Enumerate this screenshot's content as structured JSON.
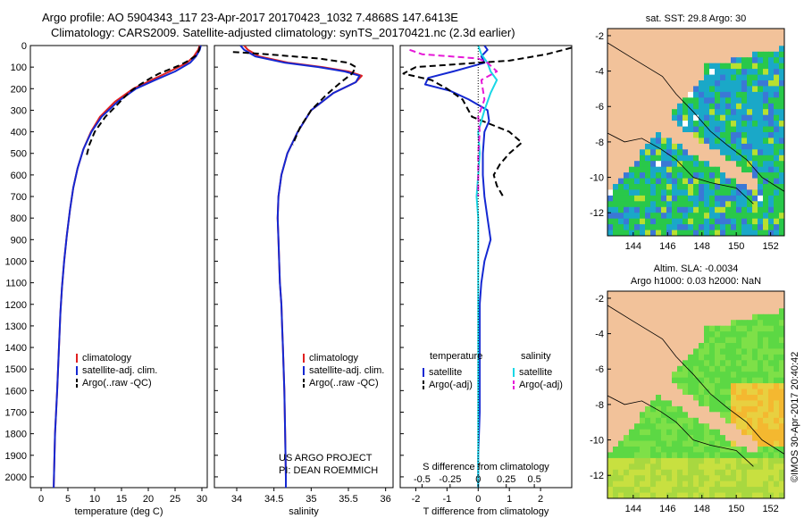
{
  "header": {
    "line1": "Argo profile: AO 5904343_117 23-Apr-2017 20170423_1032 7.4868S 147.6413E",
    "line2": "Climatology: CARS2009. Satellite-adjusted climatology: synTS_20170421.nc (2.3d earlier)"
  },
  "credit": "©IMOS 30-Apr-2017 20:40:42",
  "colors": {
    "climatology": "#e02020",
    "satellite": "#1428d2",
    "argo": "#000000",
    "salinity_satellite": "#19d7e6",
    "salinity_argo": "#e619d7",
    "land": "#f2c29a"
  },
  "chart_data": [
    {
      "type": "line",
      "id": "temperature",
      "xlabel": "temperature (deg C)",
      "ylabel": "",
      "xlim": [
        -2,
        31
      ],
      "ylim": [
        2050,
        0
      ],
      "xticks": [
        0,
        5,
        10,
        15,
        20,
        25,
        30
      ],
      "yticks": [
        0,
        100,
        200,
        300,
        400,
        500,
        600,
        700,
        800,
        900,
        1000,
        1100,
        1200,
        1300,
        1400,
        1500,
        1600,
        1700,
        1800,
        1900,
        2000
      ],
      "legend": {
        "placement": "bottom-left",
        "entries": [
          "climatology",
          "satellite-adj. clim.",
          "Argo(..raw -QC)"
        ]
      },
      "series": [
        {
          "name": "climatology",
          "style": "solid",
          "color": "#e02020",
          "x": [
            29.6,
            29.3,
            28.5,
            27.2,
            24.0,
            20.6,
            17.2,
            13.8,
            11.0,
            9.3,
            7.9,
            6.8,
            6.0,
            5.4,
            4.8,
            4.3,
            3.9,
            3.6,
            3.4,
            3.2,
            3.0,
            2.8,
            2.6,
            2.5,
            2.4,
            2.35
          ],
          "y": [
            0,
            20,
            50,
            80,
            120,
            160,
            200,
            260,
            330,
            400,
            480,
            570,
            660,
            760,
            880,
            1000,
            1120,
            1240,
            1360,
            1480,
            1600,
            1700,
            1800,
            1900,
            2000,
            2050
          ]
        },
        {
          "name": "satellite-adj. clim.",
          "style": "solid",
          "color": "#1428d2",
          "x": [
            29.8,
            29.6,
            28.9,
            27.8,
            25.0,
            21.3,
            17.7,
            14.3,
            11.3,
            9.4,
            7.9,
            6.8,
            6.0,
            5.4,
            4.8,
            4.3,
            3.9,
            3.6,
            3.4,
            3.2,
            3.0,
            2.8,
            2.6,
            2.5,
            2.4,
            2.35
          ],
          "y": [
            0,
            20,
            50,
            80,
            120,
            160,
            200,
            260,
            330,
            400,
            480,
            570,
            660,
            760,
            880,
            1000,
            1120,
            1240,
            1360,
            1480,
            1600,
            1700,
            1800,
            1900,
            2000,
            2050
          ]
        },
        {
          "name": "Argo(..raw -QC)",
          "style": "dashed",
          "color": "#000000",
          "x": [
            29.6,
            29.5,
            29.0,
            27.5,
            26.0,
            24.0,
            22.0,
            20.5,
            18.5,
            16.8,
            15.5,
            14.0,
            12.0,
            10.0,
            9.0,
            8.5
          ],
          "y": [
            5,
            20,
            45,
            70,
            90,
            110,
            130,
            150,
            180,
            210,
            240,
            280,
            330,
            400,
            460,
            510
          ]
        }
      ]
    },
    {
      "type": "line",
      "id": "salinity",
      "xlabel": "salinity",
      "ylabel": "",
      "xlim": [
        33.7,
        36.1
      ],
      "ylim": [
        2050,
        0
      ],
      "xticks": [
        34,
        34.5,
        35,
        35.5,
        36
      ],
      "legend": {
        "placement": "bottom-right",
        "entries": [
          "climatology",
          "satellite-adj. clim.",
          "Argo(..raw -QC)"
        ]
      },
      "annotation": {
        "line1": "US ARGO PROJECT",
        "line2": "PI: DEAN ROEMMICH"
      },
      "series": [
        {
          "name": "climatology",
          "style": "solid",
          "color": "#e02020",
          "x": [
            34.1,
            34.15,
            34.3,
            34.7,
            35.15,
            35.5,
            35.68,
            35.6,
            35.3,
            35.0,
            34.82,
            34.68,
            34.6,
            34.56,
            34.55,
            34.56,
            34.57,
            34.58,
            34.6,
            34.61,
            34.62,
            34.63,
            34.64,
            34.65,
            34.66,
            34.66
          ],
          "y": [
            0,
            20,
            50,
            80,
            100,
            120,
            140,
            170,
            220,
            300,
            400,
            500,
            600,
            700,
            800,
            900,
            1000,
            1100,
            1200,
            1300,
            1400,
            1500,
            1600,
            1800,
            2000,
            2050
          ]
        },
        {
          "name": "satellite-adj. clim.",
          "style": "solid",
          "color": "#1428d2",
          "x": [
            34.05,
            34.1,
            34.25,
            34.65,
            35.1,
            35.45,
            35.65,
            35.6,
            35.3,
            35.0,
            34.82,
            34.68,
            34.6,
            34.56,
            34.55,
            34.56,
            34.57,
            34.58,
            34.6,
            34.61,
            34.62,
            34.63,
            34.64,
            34.65,
            34.66,
            34.66
          ],
          "y": [
            0,
            20,
            50,
            80,
            100,
            120,
            140,
            170,
            220,
            300,
            400,
            500,
            600,
            700,
            800,
            900,
            1000,
            1100,
            1200,
            1300,
            1400,
            1500,
            1600,
            1800,
            2000,
            2050
          ]
        },
        {
          "name": "Argo(..raw -QC)",
          "style": "dashed",
          "color": "#000000",
          "x": [
            33.95,
            34.4,
            35.1,
            35.5,
            35.6,
            35.55,
            35.4,
            35.2,
            35.0,
            34.85,
            34.75
          ],
          "y": [
            30,
            40,
            60,
            80,
            100,
            130,
            170,
            230,
            300,
            380,
            460
          ]
        }
      ]
    },
    {
      "type": "line",
      "id": "difference",
      "xlabel": "T difference from climatology",
      "xlabel_top": "S difference from climatology",
      "xlim": [
        -2.5,
        3
      ],
      "ylim": [
        2050,
        0
      ],
      "xticks": [
        -2,
        -1,
        0,
        1,
        2
      ],
      "s_ticks": [
        {
          "label": "-0.5",
          "x": -1.8
        },
        {
          "label": "-0.25",
          "x": -0.9
        },
        {
          "label": "0",
          "x": 0
        },
        {
          "label": "0.25",
          "x": 0.9
        },
        {
          "label": "0.5",
          "x": 1.8
        }
      ],
      "legend": {
        "placement": "bottom",
        "temperature_title": "temperature",
        "salinity_title": "salinity",
        "temperature_entries": [
          "satellite",
          "Argo(-adj)"
        ],
        "salinity_entries": [
          "satellite",
          "Argo(-adj)"
        ]
      },
      "series": [
        {
          "name": "temperature satellite",
          "style": "solid",
          "color": "#1428d2",
          "x": [
            0.2,
            0.3,
            0.1,
            0.2,
            -0.8,
            -1.6,
            -1.7,
            -0.9,
            -0.3,
            0.3,
            0.35,
            0.2,
            0.15,
            0.15,
            0.2,
            0.3,
            0.4,
            0.2,
            0.1,
            0.05,
            0.05,
            0.05,
            0.05,
            0.0,
            0.0
          ],
          "y": [
            0,
            20,
            50,
            80,
            120,
            150,
            180,
            210,
            250,
            300,
            350,
            400,
            500,
            600,
            700,
            800,
            900,
            1000,
            1100,
            1200,
            1300,
            1500,
            1700,
            1900,
            2050
          ]
        },
        {
          "name": "temperature Argo(-adj)",
          "style": "dashed",
          "color": "#000000",
          "x": [
            3.0,
            2.2,
            1.0,
            -2.0,
            -2.4,
            -1.5,
            -1.0,
            -0.5,
            -0.2,
            1.0,
            1.4,
            1.0,
            0.7,
            0.5,
            0.6,
            0.8
          ],
          "y": [
            10,
            40,
            70,
            100,
            130,
            160,
            200,
            250,
            330,
            400,
            450,
            500,
            550,
            600,
            650,
            700
          ]
        },
        {
          "name": "salinity satellite",
          "style": "solid",
          "color": "#19d7e6",
          "x": [
            0.0,
            0.1,
            0.3,
            0.4,
            0.6,
            0.4,
            0.2,
            0.0,
            0.05,
            0.0,
            -0.05,
            0.0,
            0.0,
            0.0,
            0.0,
            0.0
          ],
          "y": [
            0,
            40,
            80,
            120,
            160,
            220,
            300,
            400,
            500,
            600,
            700,
            800,
            1000,
            1300,
            1700,
            2050
          ]
        },
        {
          "name": "salinity Argo(-adj)",
          "style": "dashed",
          "color": "#e619d7",
          "x": [
            -2.2,
            -1.8,
            0.0,
            0.3,
            0.6,
            0.1,
            0.2,
            0.0,
            0.05,
            0.0,
            0.0,
            0.0
          ],
          "y": [
            20,
            40,
            60,
            80,
            120,
            160,
            250,
            330,
            400,
            500,
            600,
            700
          ]
        }
      ]
    },
    {
      "type": "heatmap",
      "id": "sst_map",
      "title": "sat. SST: 29.8 Argo: 30",
      "xlim": [
        142.5,
        152.8
      ],
      "ylim": [
        -13.3,
        -1.6
      ],
      "xticks": [
        144,
        146,
        148,
        150,
        152
      ],
      "yticks": [
        -2,
        -4,
        -6,
        -8,
        -10,
        -12
      ],
      "grid": false
    },
    {
      "type": "heatmap",
      "id": "sla_map",
      "title": "Altim. SLA: -0.0034",
      "subtitle": "Argo h1000: 0.03 h2000: NaN",
      "xlim": [
        142.5,
        152.8
      ],
      "ylim": [
        -13.3,
        -1.6
      ],
      "xticks": [
        144,
        146,
        148,
        150,
        152
      ],
      "yticks": [
        -2,
        -4,
        -6,
        -8,
        -10,
        -12
      ],
      "grid": false
    }
  ]
}
